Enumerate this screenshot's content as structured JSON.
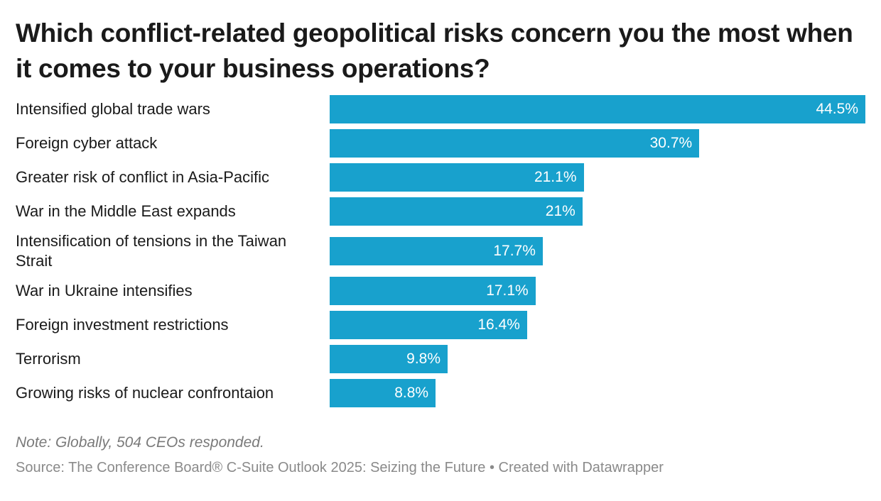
{
  "chart_data": {
    "type": "bar",
    "orientation": "horizontal",
    "title": "Which conflict-related geopolitical risks concern you the most when it comes to your business operations?",
    "categories": [
      "Intensified global trade wars",
      "Foreign cyber attack",
      "Greater risk of conflict in Asia-Pacific",
      "War in the Middle East expands",
      "Intensification of tensions in the Taiwan Strait",
      "War in Ukraine intensifies",
      "Foreign investment restrictions",
      "Terrorism",
      "Growing risks of nuclear confrontaion"
    ],
    "values": [
      44.5,
      30.7,
      21.1,
      21,
      17.7,
      17.1,
      16.4,
      9.8,
      8.8
    ],
    "value_labels": [
      "44.5%",
      "30.7%",
      "21.1%",
      "21%",
      "17.7%",
      "17.1%",
      "16.4%",
      "9.8%",
      "8.8%"
    ],
    "color": "#18a1cd",
    "note": "Note: Globally, 504 CEOs responded.",
    "source": "Source: The Conference Board® C-Suite Outlook 2025: Seizing the Future • Created with Datawrapper"
  }
}
